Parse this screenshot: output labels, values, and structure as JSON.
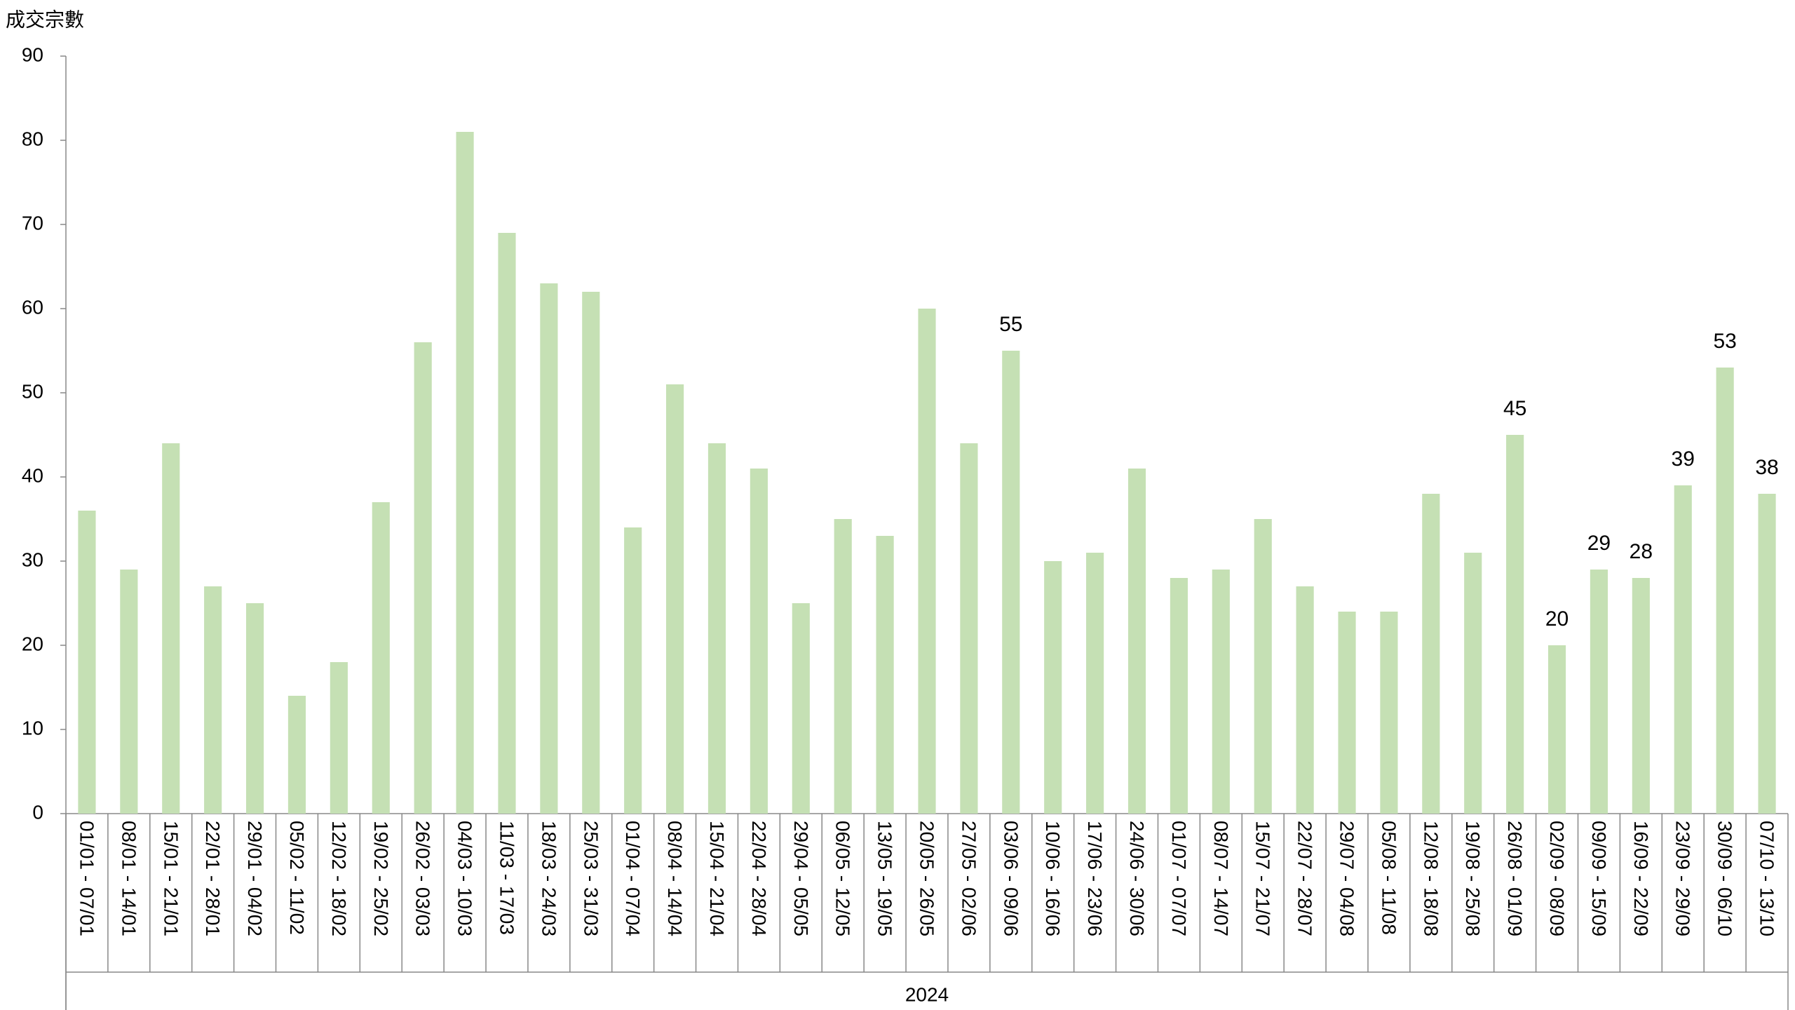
{
  "chart_data": {
    "type": "bar",
    "y_axis_label": "成交宗數",
    "group_label": "2024",
    "categories": [
      "01/01 - 07/01",
      "08/01 - 14/01",
      "15/01 - 21/01",
      "22/01 - 28/01",
      "29/01 - 04/02",
      "05/02 - 11/02",
      "12/02 - 18/02",
      "19/02 - 25/02",
      "26/02 - 03/03",
      "04/03 - 10/03",
      "11/03 - 17/03",
      "18/03 - 24/03",
      "25/03 - 31/03",
      "01/04 - 07/04",
      "08/04 - 14/04",
      "15/04 - 21/04",
      "22/04 - 28/04",
      "29/04 - 05/05",
      "06/05 - 12/05",
      "13/05 - 19/05",
      "20/05 - 26/05",
      "27/05 - 02/06",
      "03/06 - 09/06",
      "10/06 - 16/06",
      "17/06 - 23/06",
      "24/06 - 30/06",
      "01/07 - 07/07",
      "08/07 - 14/07",
      "15/07 - 21/07",
      "22/07 - 28/07",
      "29/07 - 04/08",
      "05/08 - 11/08",
      "12/08 - 18/08",
      "19/08 - 25/08",
      "26/08 - 01/09",
      "02/09 - 08/09",
      "09/09 - 15/09",
      "16/09 - 22/09",
      "23/09 - 29/09",
      "30/09 - 06/10",
      "07/10 - 13/10"
    ],
    "values": [
      36,
      29,
      44,
      27,
      25,
      14,
      18,
      37,
      56,
      81,
      69,
      63,
      62,
      34,
      51,
      44,
      41,
      25,
      35,
      33,
      60,
      44,
      55,
      30,
      31,
      41,
      28,
      29,
      35,
      27,
      24,
      24,
      38,
      31,
      45,
      20,
      29,
      28,
      39,
      53,
      38
    ],
    "value_labels": [
      null,
      null,
      null,
      null,
      null,
      null,
      null,
      null,
      null,
      null,
      null,
      null,
      null,
      null,
      null,
      null,
      null,
      null,
      null,
      null,
      null,
      null,
      "55",
      null,
      null,
      null,
      null,
      null,
      null,
      null,
      null,
      null,
      null,
      null,
      "45",
      "20",
      "29",
      "28",
      "39",
      "53",
      "38"
    ],
    "color": "#c5e0b4",
    "ylim": [
      0,
      90
    ],
    "yticks": [
      0,
      10,
      20,
      30,
      40,
      50,
      60,
      70,
      80,
      90
    ]
  }
}
